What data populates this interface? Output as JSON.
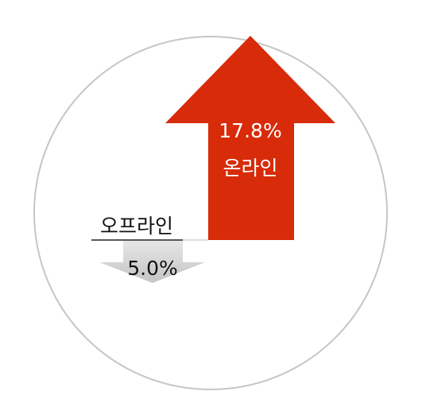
{
  "items": [
    {
      "label": "온라인",
      "value_label": "17.8%"
    },
    {
      "label": "오프라인",
      "value_label": "5.0%"
    }
  ]
}
